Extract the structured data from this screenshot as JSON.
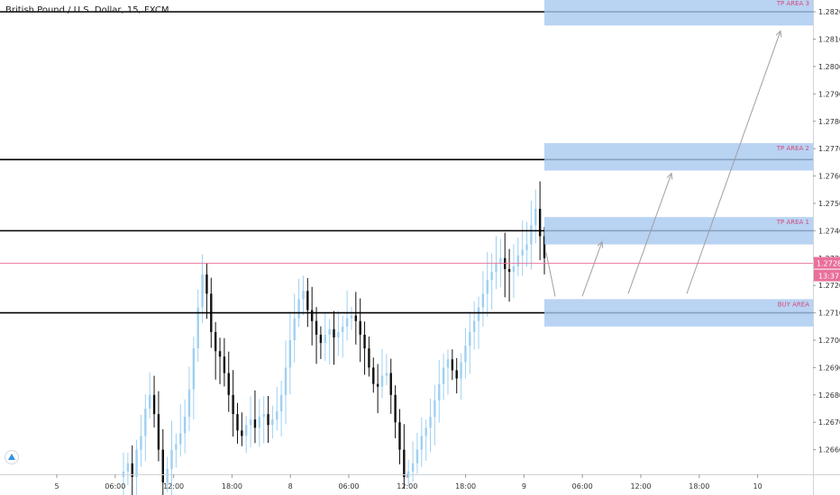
{
  "header": {
    "symbol": "British Pound / U.S. Dollar, 15, FXCM"
  },
  "colors": {
    "level_line": "#000000",
    "zone_fill": "#a8c8f0",
    "zone_label": "#d34a7c",
    "bull_candle": "#9fd0f2",
    "bear_candle": "#111111",
    "current_price": "#e8709a",
    "arrow": "#a0a0a0"
  },
  "chart_data": {
    "type": "candlestick",
    "title": "British Pound / U.S. Dollar, 15, FXCM",
    "ylim": [
      1.2651,
      1.2823
    ],
    "y_ticks": [
      "1.28200",
      "1.28100",
      "1.28000",
      "1.27900",
      "1.27800",
      "1.27700",
      "1.27600",
      "1.27500",
      "1.27400",
      "1.27300",
      "1.27200",
      "1.27100",
      "1.27000",
      "1.26900",
      "1.26800",
      "1.26700",
      "1.26600"
    ],
    "x_ticks": [
      "5",
      "06:00",
      "12:00",
      "18:00",
      "8",
      "06:00",
      "12:00",
      "18:00",
      "9",
      "06:00",
      "12:00",
      "18:00",
      "10"
    ],
    "current_price": {
      "value": "1.27281",
      "countdown": "13:37"
    },
    "levels": [
      1.282,
      1.2766,
      1.274,
      1.271
    ],
    "zones": [
      {
        "label": "TP AREA 3",
        "from": 1.2815,
        "to": 1.2825
      },
      {
        "label": "TP AREA 2",
        "from": 1.2762,
        "to": 1.2772
      },
      {
        "label": "TP AREA 1",
        "from": 1.2735,
        "to": 1.2745
      },
      {
        "label": "BUY AREA",
        "from": 1.2705,
        "to": 1.2715
      }
    ],
    "projection_arrows": [
      {
        "from": 1.2716,
        "to": 1.2736
      },
      {
        "from": 1.2717,
        "to": 1.2761
      },
      {
        "from": 1.2717,
        "to": 1.2813
      }
    ],
    "price_path": [
      1.265,
      1.2652,
      1.2655,
      1.265,
      1.266,
      1.2665,
      1.2675,
      1.268,
      1.2673,
      1.266,
      1.2648,
      1.2653,
      1.266,
      1.2662,
      1.2666,
      1.2672,
      1.2682,
      1.2697,
      1.2712,
      1.2724,
      1.2717,
      1.2703,
      1.2696,
      1.2694,
      1.2688,
      1.268,
      1.2673,
      1.2667,
      1.2665,
      1.2669,
      1.2671,
      1.2668,
      1.2672,
      1.2673,
      1.2669,
      1.2671,
      1.2674,
      1.268,
      1.269,
      1.27,
      1.2708,
      1.2715,
      1.2718,
      1.2711,
      1.2707,
      1.2702,
      1.2699,
      1.2702,
      1.2704,
      1.2701,
      1.2703,
      1.2705,
      1.2708,
      1.2709,
      1.2707,
      1.2702,
      1.2697,
      1.269,
      1.2684,
      1.2683,
      1.2687,
      1.2688,
      1.268,
      1.267,
      1.266,
      1.265,
      1.2652,
      1.2655,
      1.266,
      1.2665,
      1.2668,
      1.2672,
      1.2678,
      1.2684,
      1.269,
      1.2693,
      1.2689,
      1.2686,
      1.2692,
      1.2698,
      1.2703,
      1.2707,
      1.2712,
      1.2717,
      1.2722,
      1.2725,
      1.2728,
      1.273,
      1.2726,
      1.2725,
      1.2727,
      1.2731,
      1.2733,
      1.2735,
      1.2742,
      1.2748,
      1.2738,
      1.273
    ]
  }
}
